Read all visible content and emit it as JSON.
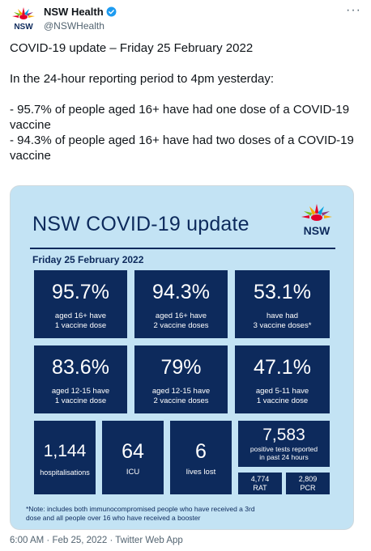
{
  "author": {
    "name": "NSW Health",
    "handle": "@NSWHealth",
    "logo_text": "NSW"
  },
  "more_label": "···",
  "tweet": {
    "line1": "COVID-19 update – Friday 25 February 2022",
    "line2": "In the 24-hour reporting period to 4pm yesterday:",
    "line3": "- 95.7% of people aged 16+ have had one dose of a COVID-19 vaccine",
    "line4": "- 94.3% of people aged 16+ have had two doses of a COVID-19 vaccine"
  },
  "card": {
    "title": "NSW COVID-19 update",
    "logo_text": "NSW",
    "date": "Friday 25 February 2022",
    "stats": [
      {
        "big": "95.7%",
        "line1": "aged 16+ have",
        "line2": "1 vaccine dose"
      },
      {
        "big": "94.3%",
        "line1": "aged 16+ have",
        "line2": "2 vaccine doses"
      },
      {
        "big": "53.1%",
        "line1": "have had",
        "line2": "3 vaccine doses*"
      },
      {
        "big": "83.6%",
        "line1": "aged 12-15 have",
        "line2": "1 vaccine dose"
      },
      {
        "big": "79%",
        "line1": "aged 12-15 have",
        "line2": "2 vaccine doses"
      },
      {
        "big": "47.1%",
        "line1": "aged 5-11 have",
        "line2": "1 vaccine dose"
      }
    ],
    "hospital": {
      "value": "1,144",
      "label": "hospitalisations"
    },
    "icu": {
      "value": "64",
      "label": "ICU"
    },
    "deaths": {
      "value": "6",
      "label": "lives lost"
    },
    "positives": {
      "value": "7,583",
      "line1": "positive tests reported",
      "line2": "in past 24 hours"
    },
    "rat": {
      "value": "4,774",
      "label": "RAT"
    },
    "pcr": {
      "value": "2,809",
      "label": "PCR"
    },
    "note_line1": "*Note: includes both immunocompromised people who have received a 3rd",
    "note_line2": "dose and all people over 16 who have received a booster"
  },
  "footer": {
    "time": "6:00 AM",
    "sep1": "·",
    "date": "Feb 25, 2022",
    "sep2": "·",
    "source": "Twitter Web App"
  },
  "colors": {
    "navy": "#0d2a5c",
    "card_bg": "#c3e3f4",
    "verified_blue": "#1d9bf0",
    "text_secondary": "#536471"
  }
}
